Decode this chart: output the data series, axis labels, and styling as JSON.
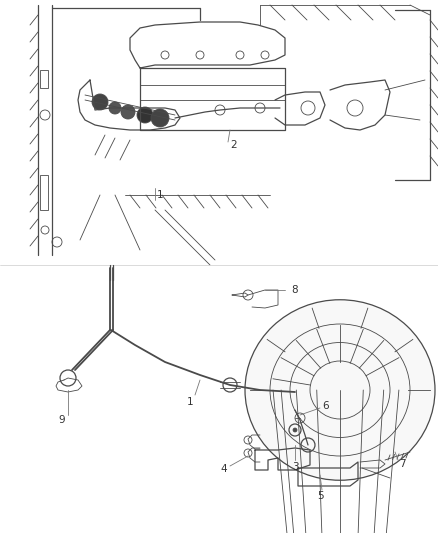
{
  "background_color": "#ffffff",
  "fig_width": 4.38,
  "fig_height": 5.33,
  "dpi": 100,
  "line_color": "#4a4a4a",
  "label_color": "#333333",
  "label_line_color": "#777777",
  "upper_bg": "#ffffff",
  "lower_bg": "#ffffff",
  "wall_color": "#5a5a5a",
  "part_fill": "#f5f5f5",
  "dark_fill": "#888888"
}
